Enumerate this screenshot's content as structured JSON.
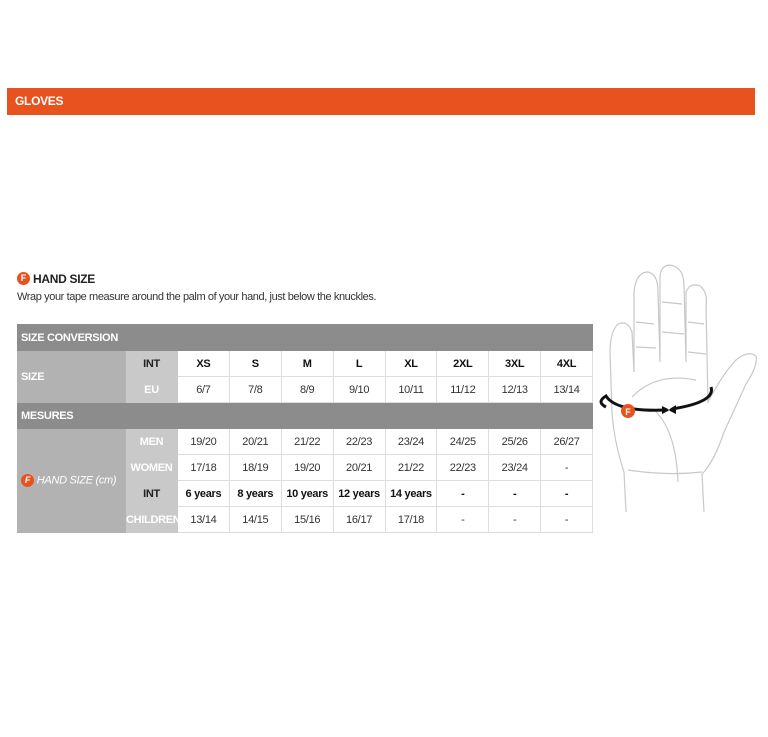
{
  "banner": {
    "title": "GLOVES"
  },
  "section": {
    "badge": "F",
    "title": "HAND SIZE",
    "description": "Wrap your tape measure around the palm of your hand, just below the knuckles."
  },
  "table": {
    "size_conversion": "SIZE CONVERSION",
    "size_label": "SIZE",
    "int_label": "INT",
    "eu_label": "EU",
    "sizes": [
      "XS",
      "S",
      "M",
      "L",
      "XL",
      "2XL",
      "3XL",
      "4XL"
    ],
    "eu": [
      "6/7",
      "7/8",
      "8/9",
      "9/10",
      "10/11",
      "11/12",
      "12/13",
      "13/14"
    ],
    "mesures": "MESURES",
    "hand_badge": "F",
    "hand_label": "HAND SIZE (cm)",
    "men_label": "MEN",
    "men": [
      "19/20",
      "20/21",
      "21/22",
      "22/23",
      "23/24",
      "24/25",
      "25/26",
      "26/27"
    ],
    "women_label": "WOMEN",
    "women": [
      "17/18",
      "18/19",
      "19/20",
      "20/21",
      "21/22",
      "22/23",
      "23/24",
      "-"
    ],
    "kids_int_label": "INT",
    "kids_int": [
      "6 years",
      "8 years",
      "10 years",
      "12 years",
      "14 years",
      "-",
      "-",
      "-"
    ],
    "children_label": "CHILDREN",
    "children": [
      "13/14",
      "14/15",
      "15/16",
      "16/17",
      "17/18",
      "-",
      "-",
      "-"
    ]
  },
  "illustration": {
    "badge": "F"
  },
  "colors": {
    "accent": "#e8521e",
    "header_gray": "#8c8c8c",
    "label_gray": "#b2b2b2"
  }
}
